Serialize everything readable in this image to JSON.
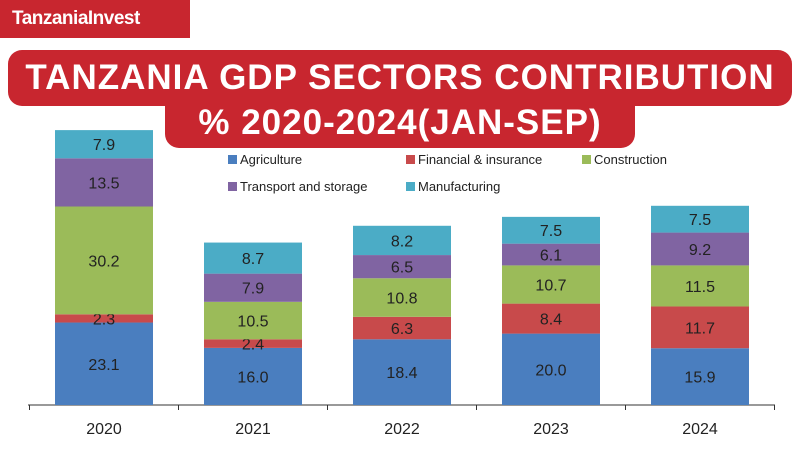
{
  "logo": "TanzaniaInvest",
  "title_line1": "TANZANIA GDP SECTORS CONTRIBUTION",
  "title_line2": "% 2020-2024(JAN-SEP)",
  "chart_data": {
    "type": "bar",
    "stacked": true,
    "title": "TANZANIA GDP SECTORS CONTRIBUTION % 2020-2024(JAN-SEP)",
    "categories": [
      "2020",
      "2021",
      "2022",
      "2023",
      "2024"
    ],
    "series": [
      {
        "name": "Agriculture",
        "color": "#4a7ebf",
        "values": [
          23.1,
          16.0,
          18.4,
          20.0,
          15.9
        ]
      },
      {
        "name": "Financial & insurance",
        "color": "#c84a4b",
        "values": [
          2.3,
          2.4,
          6.3,
          8.4,
          11.7
        ]
      },
      {
        "name": "Construction",
        "color": "#9bbb59",
        "values": [
          30.2,
          10.5,
          10.8,
          10.7,
          11.5
        ]
      },
      {
        "name": "Transport and storage",
        "color": "#8064a2",
        "values": [
          13.5,
          7.9,
          6.5,
          6.1,
          9.2
        ]
      },
      {
        "name": "Manufacturing",
        "color": "#4bacc6",
        "values": [
          7.9,
          8.7,
          8.2,
          7.5,
          7.5
        ]
      }
    ],
    "legend": "top"
  }
}
